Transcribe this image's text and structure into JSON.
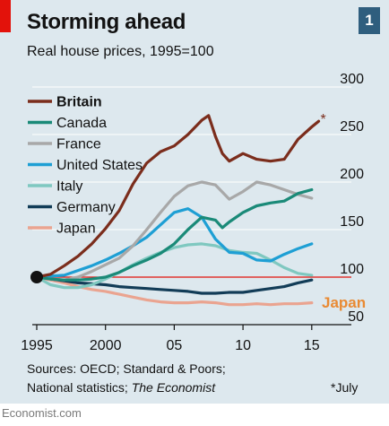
{
  "header": {
    "title": "Storming ahead",
    "subtitle": "Real house prices, 1995=100",
    "chart_number": "1"
  },
  "footer": {
    "source_line1": "Sources: OECD; Standard & Poors;",
    "source_line2_prefix": "National statistics; ",
    "source_line2_italic": "The Economist",
    "footnote": "*July",
    "credit": "Economist.com"
  },
  "colors": {
    "background": "#dde8ee",
    "accent_red": "#e3120b",
    "badge": "#2f5e7e"
  },
  "chart_data": {
    "type": "line",
    "title": "Storming ahead",
    "subtitle": "Real house prices, 1995=100",
    "x_ticks": [
      "1995",
      "2000",
      "05",
      "10",
      "15"
    ],
    "x_tick_values": [
      1995,
      2000,
      2005,
      2010,
      2015
    ],
    "y_ticks": [
      50,
      100,
      150,
      200,
      250,
      300
    ],
    "xlim": [
      1995,
      2015.6
    ],
    "ylim": [
      50,
      300
    ],
    "baseline": 100,
    "legend_position": "top-left",
    "annotations": [
      {
        "text": "*",
        "series": "Britain"
      },
      {
        "text": "Japan",
        "series": "Japan"
      }
    ],
    "series": [
      {
        "name": "Britain",
        "color": "#7b2d1c",
        "bold": true,
        "points": [
          [
            1995,
            100
          ],
          [
            1996,
            103
          ],
          [
            1997,
            112
          ],
          [
            1998,
            122
          ],
          [
            1999,
            135
          ],
          [
            2000,
            151
          ],
          [
            2001,
            170
          ],
          [
            2002,
            198
          ],
          [
            2003,
            220
          ],
          [
            2004,
            232
          ],
          [
            2005,
            238
          ],
          [
            2006,
            250
          ],
          [
            2007,
            265
          ],
          [
            2007.5,
            270
          ],
          [
            2008,
            248
          ],
          [
            2008.5,
            230
          ],
          [
            2009,
            222
          ],
          [
            2010,
            230
          ],
          [
            2011,
            224
          ],
          [
            2012,
            222
          ],
          [
            2013,
            224
          ],
          [
            2014,
            245
          ],
          [
            2015,
            258
          ],
          [
            2015.5,
            264
          ]
        ]
      },
      {
        "name": "Canada",
        "color": "#1a8a78",
        "points": [
          [
            1995,
            100
          ],
          [
            1996,
            98
          ],
          [
            1997,
            97
          ],
          [
            1998,
            97
          ],
          [
            1999,
            98
          ],
          [
            2000,
            100
          ],
          [
            2001,
            105
          ],
          [
            2002,
            112
          ],
          [
            2003,
            118
          ],
          [
            2004,
            125
          ],
          [
            2005,
            135
          ],
          [
            2006,
            150
          ],
          [
            2007,
            163
          ],
          [
            2008,
            160
          ],
          [
            2008.5,
            152
          ],
          [
            2009,
            158
          ],
          [
            2010,
            168
          ],
          [
            2011,
            175
          ],
          [
            2012,
            178
          ],
          [
            2013,
            180
          ],
          [
            2014,
            188
          ],
          [
            2015,
            192
          ]
        ]
      },
      {
        "name": "France",
        "color": "#a8a8a8",
        "points": [
          [
            1995,
            100
          ],
          [
            1996,
            98
          ],
          [
            1997,
            97
          ],
          [
            1998,
            100
          ],
          [
            1999,
            106
          ],
          [
            2000,
            113
          ],
          [
            2001,
            120
          ],
          [
            2002,
            133
          ],
          [
            2003,
            150
          ],
          [
            2004,
            168
          ],
          [
            2005,
            185
          ],
          [
            2006,
            196
          ],
          [
            2007,
            200
          ],
          [
            2008,
            197
          ],
          [
            2009,
            182
          ],
          [
            2010,
            190
          ],
          [
            2011,
            200
          ],
          [
            2012,
            197
          ],
          [
            2013,
            192
          ],
          [
            2014,
            187
          ],
          [
            2015,
            183
          ]
        ]
      },
      {
        "name": "United States",
        "color": "#1e9fd4",
        "points": [
          [
            1995,
            100
          ],
          [
            1996,
            101
          ],
          [
            1997,
            102
          ],
          [
            1998,
            107
          ],
          [
            1999,
            112
          ],
          [
            2000,
            118
          ],
          [
            2001,
            125
          ],
          [
            2002,
            133
          ],
          [
            2003,
            142
          ],
          [
            2004,
            155
          ],
          [
            2005,
            168
          ],
          [
            2006,
            172
          ],
          [
            2007,
            163
          ],
          [
            2008,
            140
          ],
          [
            2009,
            126
          ],
          [
            2010,
            125
          ],
          [
            2011,
            118
          ],
          [
            2012,
            117
          ],
          [
            2013,
            124
          ],
          [
            2014,
            130
          ],
          [
            2015,
            135
          ]
        ]
      },
      {
        "name": "Italy",
        "color": "#7fc8c0",
        "points": [
          [
            1995,
            100
          ],
          [
            1996,
            92
          ],
          [
            1997,
            89
          ],
          [
            1998,
            89
          ],
          [
            1999,
            92
          ],
          [
            2000,
            98
          ],
          [
            2001,
            105
          ],
          [
            2002,
            113
          ],
          [
            2003,
            120
          ],
          [
            2004,
            126
          ],
          [
            2005,
            131
          ],
          [
            2006,
            134
          ],
          [
            2007,
            135
          ],
          [
            2008,
            133
          ],
          [
            2009,
            128
          ],
          [
            2010,
            126
          ],
          [
            2011,
            125
          ],
          [
            2012,
            118
          ],
          [
            2013,
            110
          ],
          [
            2014,
            104
          ],
          [
            2015,
            102
          ]
        ]
      },
      {
        "name": "Germany",
        "color": "#123c57",
        "points": [
          [
            1995,
            100
          ],
          [
            1996,
            98
          ],
          [
            1997,
            96
          ],
          [
            1998,
            94
          ],
          [
            1999,
            93
          ],
          [
            2000,
            92
          ],
          [
            2001,
            90
          ],
          [
            2002,
            89
          ],
          [
            2003,
            88
          ],
          [
            2004,
            87
          ],
          [
            2005,
            86
          ],
          [
            2006,
            85
          ],
          [
            2007,
            83
          ],
          [
            2008,
            83
          ],
          [
            2009,
            84
          ],
          [
            2010,
            84
          ],
          [
            2011,
            86
          ],
          [
            2012,
            88
          ],
          [
            2013,
            90
          ],
          [
            2014,
            94
          ],
          [
            2015,
            97
          ]
        ]
      },
      {
        "name": "Japan",
        "color": "#eaa490",
        "points": [
          [
            1995,
            100
          ],
          [
            1996,
            97
          ],
          [
            1997,
            94
          ],
          [
            1998,
            90
          ],
          [
            1999,
            87
          ],
          [
            2000,
            85
          ],
          [
            2001,
            82
          ],
          [
            2002,
            79
          ],
          [
            2003,
            76
          ],
          [
            2004,
            74
          ],
          [
            2005,
            73
          ],
          [
            2006,
            73
          ],
          [
            2007,
            74
          ],
          [
            2008,
            73
          ],
          [
            2009,
            71
          ],
          [
            2010,
            71
          ],
          [
            2011,
            72
          ],
          [
            2012,
            71
          ],
          [
            2013,
            72
          ],
          [
            2014,
            72
          ],
          [
            2015,
            73
          ]
        ]
      }
    ]
  }
}
